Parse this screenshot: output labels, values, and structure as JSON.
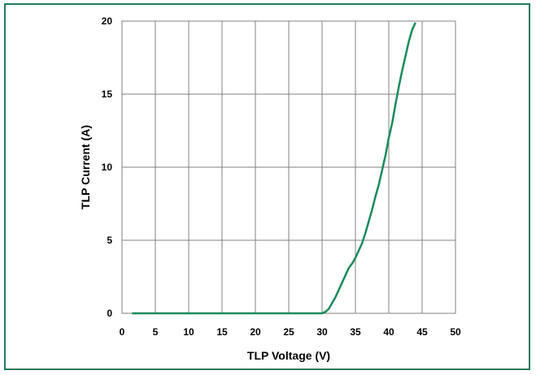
{
  "chart_data": {
    "type": "line",
    "title": "",
    "xlabel": "TLP Voltage (V)",
    "ylabel": "TLP Current (A)",
    "xlim": [
      0,
      50
    ],
    "ylim": [
      0,
      20
    ],
    "xticks": [
      "0",
      "5",
      "10",
      "15",
      "20",
      "25",
      "30",
      "35",
      "40",
      "45",
      "50"
    ],
    "yticks": [
      "0",
      "5",
      "10",
      "15",
      "20"
    ],
    "grid": true,
    "legend": "none",
    "series": [
      {
        "color": "#1a8a5a",
        "x": [
          1.5,
          3.0,
          5,
          10,
          15,
          20,
          25,
          29,
          30.0,
          30.5,
          31.0,
          31.5,
          32.0,
          32.5,
          33.0,
          33.5,
          34.0,
          34.5,
          35.0,
          35.5,
          36.0,
          36.5,
          37.0,
          37.5,
          38.0,
          38.5,
          39.0,
          39.5,
          40.0,
          40.5,
          41.0,
          41.5,
          42.0,
          42.5,
          43.0,
          43.5,
          44.0
        ],
        "y": [
          0,
          0,
          0,
          0,
          0,
          0,
          0,
          0,
          0,
          0.1,
          0.3,
          0.7,
          1.1,
          1.6,
          2.1,
          2.6,
          3.1,
          3.4,
          3.8,
          4.3,
          4.8,
          5.5,
          6.3,
          7.1,
          8.0,
          8.8,
          9.8,
          10.8,
          12.0,
          13.0,
          14.3,
          15.5,
          16.6,
          17.6,
          18.6,
          19.4,
          19.9
        ]
      }
    ]
  }
}
